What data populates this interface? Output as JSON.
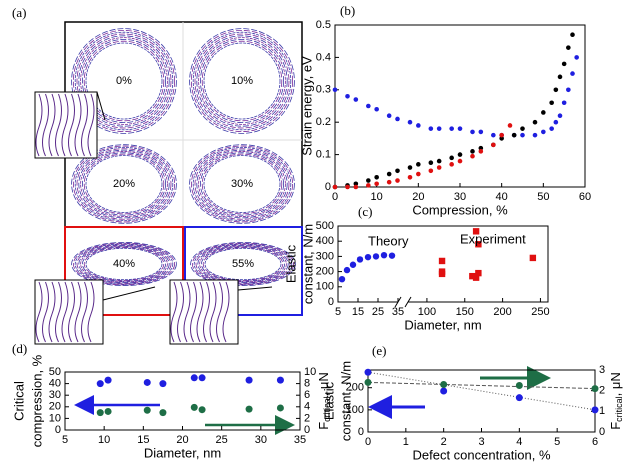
{
  "image_panel": {
    "label": "(a)",
    "frames": [
      "0%",
      "10%",
      "20%",
      "30%",
      "40%",
      "55%"
    ]
  },
  "chart_data": [
    {
      "type": "scatter",
      "label": "(b)",
      "xlabel": "Compression, %",
      "ylabel": "Strain energy, eV",
      "xlim": [
        0,
        60
      ],
      "xticks": [
        0,
        10,
        20,
        30,
        40,
        50,
        60
      ],
      "ylim": [
        0,
        0.5
      ],
      "yticks": [
        0,
        0.1,
        0.2,
        0.3,
        0.4,
        0.5
      ],
      "series": [
        {
          "color": "#1f1fe0",
          "x": [
            0,
            3,
            5,
            8,
            10,
            13,
            15,
            18,
            20,
            23,
            25,
            28,
            30,
            33,
            35,
            38,
            40,
            43,
            45,
            48,
            50,
            52,
            53,
            54,
            55,
            56,
            57,
            58
          ],
          "values": [
            0.3,
            0.28,
            0.27,
            0.25,
            0.24,
            0.22,
            0.21,
            0.2,
            0.19,
            0.18,
            0.18,
            0.18,
            0.18,
            0.17,
            0.17,
            0.16,
            0.16,
            0.16,
            0.16,
            0.16,
            0.17,
            0.18,
            0.2,
            0.22,
            0.26,
            0.3,
            0.35,
            0.4
          ]
        },
        {
          "color": "#000000",
          "x": [
            0,
            3,
            5,
            8,
            10,
            13,
            15,
            18,
            20,
            23,
            25,
            28,
            30,
            33,
            35,
            38,
            40,
            43,
            45,
            48,
            50,
            52,
            53,
            54,
            55,
            56,
            57
          ],
          "values": [
            0,
            0.005,
            0.01,
            0.02,
            0.03,
            0.04,
            0.05,
            0.06,
            0.07,
            0.075,
            0.08,
            0.09,
            0.1,
            0.11,
            0.12,
            0.13,
            0.15,
            0.16,
            0.18,
            0.2,
            0.23,
            0.26,
            0.3,
            0.34,
            0.38,
            0.43,
            0.47
          ]
        },
        {
          "color": "#e01010",
          "x": [
            0,
            3,
            5,
            8,
            10,
            13,
            15,
            18,
            20,
            23,
            25,
            28,
            30,
            33,
            35,
            38,
            40,
            42
          ],
          "values": [
            0,
            0,
            0,
            0.005,
            0.01,
            0.015,
            0.02,
            0.03,
            0.04,
            0.05,
            0.06,
            0.07,
            0.08,
            0.095,
            0.11,
            0.13,
            0.16,
            0.19
          ]
        }
      ]
    },
    {
      "type": "scatter",
      "label": "(c)",
      "xlabel": "Diameter, nm",
      "ylabel": [
        "Elastic",
        "constant, N/m"
      ],
      "xlim": [
        5,
        35
      ],
      "xticks": [
        5,
        15,
        25,
        35
      ],
      "x2lim": [
        75,
        260
      ],
      "x2ticks": [
        100,
        150,
        200,
        250
      ],
      "ylim": [
        0,
        500
      ],
      "yticks": [
        0,
        100,
        200,
        300,
        400,
        500
      ],
      "series": [
        {
          "name": "Theory",
          "color": "#1f1fe0",
          "marker": "circle",
          "x": [
            7,
            9.5,
            12.5,
            16,
            20,
            24,
            28,
            32
          ],
          "values": [
            150,
            210,
            245,
            280,
            295,
            300,
            308,
            305
          ]
        },
        {
          "name": "Experiment",
          "color": "#e01010",
          "marker": "square",
          "x": [
            120,
            120,
            120,
            160,
            165,
            165,
            168,
            168,
            240
          ],
          "values": [
            270,
            200,
            185,
            170,
            160,
            465,
            380,
            190,
            290
          ]
        }
      ]
    },
    {
      "type": "scatter",
      "label": "(d)",
      "xlabel": "Diameter, nm",
      "ylabel": [
        "Critical",
        "compression, %"
      ],
      "y2label": [
        "F",
        "critical",
        ", μN"
      ],
      "xlim": [
        5,
        35
      ],
      "xticks": [
        5,
        10,
        15,
        20,
        25,
        30,
        35
      ],
      "ylim": [
        0,
        50
      ],
      "yticks": [
        0,
        10,
        20,
        30,
        40,
        50
      ],
      "y2lim": [
        0,
        10
      ],
      "y2ticks": [
        0,
        2,
        4,
        6,
        8,
        10
      ],
      "series": [
        {
          "color": "#1f1fe0",
          "x": [
            9.5,
            10.5,
            15.5,
            17.5,
            21.5,
            22.5,
            28.5,
            32.5
          ],
          "values": [
            40,
            43,
            41,
            40,
            45,
            45,
            43,
            43
          ]
        },
        {
          "color": "#1e6e46",
          "axis": "y2",
          "x": [
            9.5,
            10.5,
            15.5,
            17.5,
            21.5,
            22.5,
            28.5,
            32.5
          ],
          "values": [
            3,
            3.2,
            3.4,
            3,
            3.9,
            3.5,
            3.6,
            3.8
          ]
        }
      ]
    },
    {
      "type": "scatter",
      "label": "(e)",
      "xlabel": "Defect concentration, %",
      "ylabel": [
        "Elastic",
        "constant, N/m"
      ],
      "y2label": [
        "F",
        "critical",
        ", μN"
      ],
      "xlim": [
        0,
        6
      ],
      "xticks": [
        0,
        1,
        2,
        3,
        4,
        5,
        6
      ],
      "ylim": [
        0,
        280
      ],
      "yticks": [
        0,
        100,
        200
      ],
      "y2lim": [
        0,
        3
      ],
      "y2ticks": [
        0,
        1,
        2,
        3
      ],
      "series": [
        {
          "color": "#1f1fe0",
          "x": [
            0,
            2,
            4,
            6
          ],
          "values": [
            270,
            185,
            155,
            100
          ]
        },
        {
          "color": "#1e6e46",
          "axis": "y2",
          "x": [
            0,
            2,
            4,
            6
          ],
          "values": [
            2.4,
            2.3,
            2.25,
            2.1
          ]
        }
      ]
    }
  ]
}
